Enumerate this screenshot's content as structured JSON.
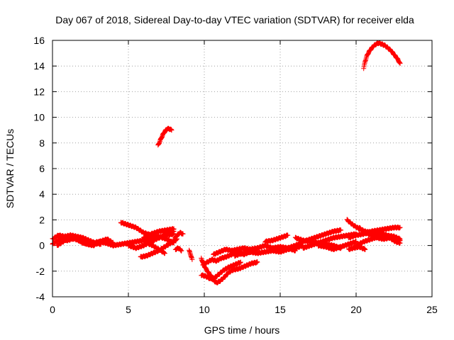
{
  "chart_data": {
    "type": "scatter",
    "title": "Day 067 of 2018, Sidereal Day-to-day VTEC variation (SDTVAR) for receiver elda",
    "xlabel": "GPS time / hours",
    "ylabel": "SDTVAR / TECUs",
    "xlim": [
      0,
      25
    ],
    "ylim": [
      -4,
      16
    ],
    "x_ticks": [
      "0",
      "5",
      "10",
      "15",
      "20",
      "25"
    ],
    "y_ticks": [
      "-4",
      "-2",
      "0",
      "2",
      "4",
      "6",
      "8",
      "10",
      "12",
      "14",
      "16"
    ],
    "grid": true,
    "marker": "plus",
    "series": [
      {
        "name": "SDTVAR",
        "color": "#ff0000",
        "tracks": [
          [
            [
              0.0,
              0.1
            ],
            [
              0.5,
              0.5
            ],
            [
              1.0,
              0.4
            ],
            [
              1.5,
              0.6
            ],
            [
              2.0,
              0.2
            ],
            [
              2.5,
              0.1
            ],
            [
              3.0,
              0.3
            ],
            [
              3.5,
              0.2
            ],
            [
              4.0,
              0.0
            ],
            [
              4.5,
              0.1
            ],
            [
              5.0,
              0.2
            ],
            [
              5.5,
              0.3
            ],
            [
              6.0,
              0.4
            ],
            [
              6.5,
              0.5
            ],
            [
              7.0,
              0.6
            ],
            [
              7.5,
              0.8
            ],
            [
              8.0,
              0.9
            ]
          ],
          [
            [
              0.0,
              0.5
            ],
            [
              0.4,
              0.8
            ],
            [
              0.8,
              0.7
            ],
            [
              1.2,
              0.8
            ],
            [
              1.6,
              0.7
            ],
            [
              2.0,
              0.6
            ],
            [
              2.4,
              0.4
            ],
            [
              2.8,
              0.2
            ],
            [
              3.2,
              0.1
            ]
          ],
          [
            [
              0.3,
              0.0
            ],
            [
              0.7,
              0.3
            ],
            [
              1.1,
              0.6
            ],
            [
              1.5,
              0.5
            ],
            [
              1.9,
              0.3
            ],
            [
              2.3,
              0.1
            ],
            [
              2.7,
              0.0
            ],
            [
              3.1,
              0.3
            ],
            [
              3.6,
              0.5
            ],
            [
              4.0,
              0.2
            ]
          ],
          [
            [
              4.5,
              1.8
            ],
            [
              5.0,
              1.6
            ],
            [
              5.5,
              1.4
            ],
            [
              6.0,
              1.0
            ],
            [
              6.5,
              0.8
            ],
            [
              7.0,
              0.7
            ],
            [
              7.5,
              0.5
            ],
            [
              8.0,
              0.2
            ]
          ],
          [
            [
              5.0,
              0.0
            ],
            [
              5.5,
              -0.2
            ],
            [
              6.0,
              0.0
            ],
            [
              6.5,
              0.3
            ],
            [
              7.0,
              0.6
            ],
            [
              7.5,
              0.9
            ],
            [
              8.0,
              1.1
            ]
          ],
          [
            [
              6.0,
              0.6
            ],
            [
              6.5,
              0.9
            ],
            [
              7.0,
              1.1
            ],
            [
              7.5,
              1.2
            ],
            [
              8.0,
              1.3
            ]
          ],
          [
            [
              5.8,
              -0.9
            ],
            [
              6.2,
              -0.8
            ],
            [
              6.6,
              -0.6
            ],
            [
              7.0,
              -0.4
            ],
            [
              7.4,
              -0.1
            ],
            [
              7.8,
              0.2
            ],
            [
              8.2,
              0.5
            ]
          ],
          [
            [
              6.2,
              0.2
            ],
            [
              6.6,
              0.0
            ],
            [
              7.0,
              -0.3
            ],
            [
              7.4,
              -0.6
            ]
          ],
          [
            [
              8.0,
              0.4
            ],
            [
              8.2,
              0.8
            ],
            [
              8.4,
              1.0
            ],
            [
              8.6,
              0.9
            ]
          ],
          [
            [
              8.1,
              -0.3
            ],
            [
              8.3,
              -0.2
            ],
            [
              8.5,
              -0.4
            ]
          ],
          [
            [
              9.0,
              -0.4
            ],
            [
              9.1,
              -0.7
            ],
            [
              9.2,
              -1.1
            ]
          ],
          [
            [
              6.95,
              7.8
            ],
            [
              7.1,
              8.2
            ],
            [
              7.25,
              8.6
            ],
            [
              7.4,
              8.9
            ],
            [
              7.55,
              9.1
            ],
            [
              7.7,
              9.1
            ],
            [
              7.85,
              9.0
            ]
          ],
          [
            [
              9.8,
              -1.0
            ],
            [
              10.0,
              -1.6
            ],
            [
              10.2,
              -2.0
            ],
            [
              10.4,
              -2.3
            ],
            [
              10.6,
              -2.7
            ],
            [
              10.8,
              -2.9
            ],
            [
              11.0,
              -2.8
            ],
            [
              11.3,
              -2.5
            ],
            [
              11.6,
              -2.1
            ],
            [
              11.9,
              -1.9
            ],
            [
              12.3,
              -1.8
            ],
            [
              12.7,
              -1.6
            ],
            [
              13.1,
              -1.4
            ],
            [
              13.5,
              -1.3
            ]
          ],
          [
            [
              9.8,
              -2.3
            ],
            [
              10.1,
              -2.4
            ],
            [
              10.4,
              -2.6
            ],
            [
              10.7,
              -2.5
            ],
            [
              11.0,
              -2.2
            ],
            [
              11.3,
              -1.9
            ],
            [
              11.6,
              -1.7
            ],
            [
              12.0,
              -1.5
            ],
            [
              12.4,
              -1.3
            ]
          ],
          [
            [
              9.9,
              -1.5
            ],
            [
              10.2,
              -1.3
            ],
            [
              10.5,
              -1.1
            ],
            [
              10.8,
              -1.2
            ],
            [
              11.1,
              -1.0
            ],
            [
              11.4,
              -0.9
            ],
            [
              11.8,
              -0.7
            ],
            [
              12.2,
              -0.5
            ],
            [
              12.6,
              -0.7
            ],
            [
              13.0,
              -0.5
            ],
            [
              13.4,
              -0.4
            ]
          ],
          [
            [
              10.6,
              -0.7
            ],
            [
              11.0,
              -0.5
            ],
            [
              11.4,
              -0.3
            ],
            [
              11.8,
              -0.4
            ],
            [
              12.2,
              -0.3
            ],
            [
              12.6,
              -0.2
            ],
            [
              13.0,
              -0.3
            ],
            [
              13.5,
              -0.2
            ],
            [
              14.0,
              0.0
            ],
            [
              14.5,
              -0.2
            ],
            [
              15.0,
              -0.1
            ],
            [
              15.5,
              -0.2
            ],
            [
              16.0,
              -0.4
            ]
          ],
          [
            [
              12.0,
              -0.8
            ],
            [
              12.5,
              -0.6
            ],
            [
              13.0,
              -0.5
            ],
            [
              13.5,
              -0.6
            ],
            [
              14.0,
              -0.5
            ],
            [
              14.5,
              -0.4
            ],
            [
              15.0,
              -0.5
            ],
            [
              15.5,
              -0.3
            ],
            [
              16.0,
              -0.2
            ],
            [
              16.5,
              0.0
            ]
          ],
          [
            [
              14.0,
              0.3
            ],
            [
              14.5,
              0.4
            ],
            [
              15.0,
              0.6
            ],
            [
              15.5,
              0.8
            ]
          ],
          [
            [
              15.0,
              -0.3
            ],
            [
              15.5,
              -0.2
            ],
            [
              16.0,
              0.0
            ],
            [
              16.5,
              0.3
            ],
            [
              17.0,
              0.5
            ],
            [
              17.5,
              0.7
            ],
            [
              18.0,
              0.9
            ],
            [
              18.5,
              1.1
            ],
            [
              19.0,
              1.2
            ]
          ],
          [
            [
              16.0,
              0.6
            ],
            [
              16.5,
              0.4
            ],
            [
              17.0,
              0.3
            ],
            [
              17.5,
              0.2
            ],
            [
              18.0,
              0.1
            ],
            [
              18.5,
              0.0
            ],
            [
              19.0,
              -0.2
            ]
          ],
          [
            [
              16.5,
              -0.2
            ],
            [
              17.0,
              0.0
            ],
            [
              17.5,
              0.2
            ],
            [
              18.0,
              0.4
            ],
            [
              18.5,
              0.6
            ],
            [
              19.0,
              0.7
            ],
            [
              19.5,
              0.8
            ],
            [
              20.0,
              0.9
            ]
          ],
          [
            [
              17.5,
              0.0
            ],
            [
              18.0,
              -0.1
            ],
            [
              18.5,
              -0.3
            ],
            [
              19.0,
              -0.1
            ],
            [
              19.5,
              0.1
            ],
            [
              20.0,
              0.3
            ]
          ],
          [
            [
              19.4,
              2.0
            ],
            [
              19.8,
              1.6
            ],
            [
              20.2,
              1.3
            ],
            [
              20.6,
              1.1
            ],
            [
              21.0,
              1.0
            ],
            [
              21.4,
              1.0
            ],
            [
              21.8,
              0.9
            ],
            [
              22.2,
              0.7
            ],
            [
              22.6,
              0.5
            ],
            [
              22.9,
              0.4
            ]
          ],
          [
            [
              19.5,
              0.6
            ],
            [
              20.0,
              0.8
            ],
            [
              20.5,
              0.9
            ],
            [
              21.0,
              1.1
            ],
            [
              21.5,
              1.2
            ],
            [
              22.0,
              1.3
            ],
            [
              22.5,
              1.4
            ],
            [
              22.9,
              1.4
            ]
          ],
          [
            [
              19.5,
              -0.3
            ],
            [
              19.8,
              -0.2
            ],
            [
              20.2,
              -0.1
            ],
            [
              20.6,
              -0.3
            ]
          ],
          [
            [
              20.0,
              0.0
            ],
            [
              20.5,
              0.3
            ],
            [
              21.0,
              0.5
            ],
            [
              21.5,
              0.7
            ],
            [
              22.0,
              0.8
            ],
            [
              22.5,
              0.7
            ],
            [
              22.9,
              0.5
            ]
          ],
          [
            [
              20.2,
              1.4
            ],
            [
              20.6,
              1.0
            ],
            [
              21.0,
              0.8
            ],
            [
              21.4,
              0.6
            ],
            [
              21.8,
              0.5
            ],
            [
              22.2,
              0.6
            ],
            [
              22.6,
              0.3
            ],
            [
              22.9,
              0.2
            ]
          ],
          [
            [
              20.5,
              13.8
            ],
            [
              20.6,
              14.4
            ],
            [
              20.75,
              14.9
            ],
            [
              20.9,
              15.2
            ],
            [
              21.1,
              15.5
            ],
            [
              21.3,
              15.7
            ],
            [
              21.5,
              15.8
            ],
            [
              21.7,
              15.7
            ],
            [
              21.9,
              15.6
            ],
            [
              22.1,
              15.4
            ],
            [
              22.3,
              15.2
            ],
            [
              22.5,
              14.9
            ],
            [
              22.7,
              14.6
            ],
            [
              22.9,
              14.2
            ]
          ]
        ]
      }
    ]
  }
}
